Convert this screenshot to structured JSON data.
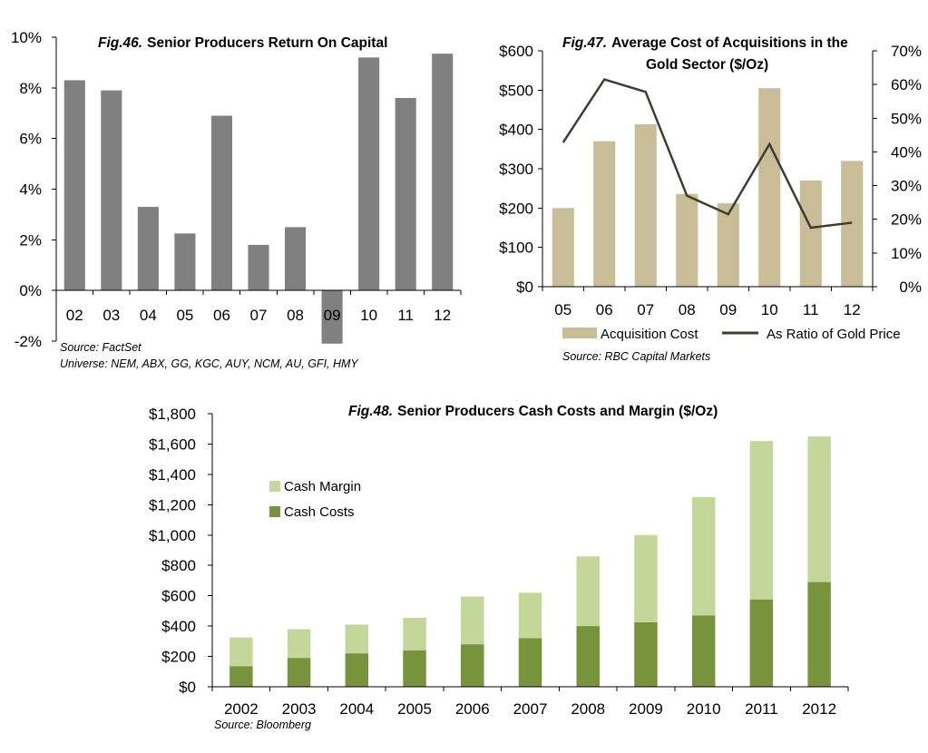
{
  "colors": {
    "bar_grey": "#808080",
    "bar_tan": "#c8bd97",
    "line_dark": "#3c3f30",
    "margin_light": "#c4d79b",
    "costs_green": "#77933c"
  },
  "chart_data": [
    {
      "id": "fig46",
      "type": "bar",
      "title_prefix": "Fig.46.",
      "title": "Senior Producers Return On Capital",
      "categories": [
        "02",
        "03",
        "04",
        "05",
        "06",
        "07",
        "08",
        "09",
        "10",
        "11",
        "12"
      ],
      "values": [
        8.3,
        7.9,
        3.3,
        2.25,
        6.9,
        1.8,
        2.5,
        -2.1,
        9.2,
        7.6,
        9.35
      ],
      "ylim": [
        -2,
        10
      ],
      "yticks": [
        -2,
        0,
        2,
        4,
        6,
        8,
        10
      ],
      "ytick_labels": [
        "-2%",
        "0%",
        "2%",
        "4%",
        "6%",
        "8%",
        "10%"
      ],
      "xlabel": "",
      "ylabel": "",
      "grid": false,
      "source": "Source: FactSet",
      "universe": "Universe: NEM, ABX, GG, KGC, AUY, NCM, AU, GFI, HMY"
    },
    {
      "id": "fig47",
      "type": "bar+line",
      "title_prefix": "Fig.47.",
      "title_line1": "Average Cost of Acquisitions in the",
      "title_line2": "Gold Sector ($/Oz)",
      "categories": [
        "05",
        "06",
        "07",
        "08",
        "09",
        "10",
        "11",
        "12"
      ],
      "series": [
        {
          "name": "Acquisition Cost",
          "kind": "bar",
          "axis": "left",
          "values": [
            200,
            370,
            413,
            236,
            212,
            505,
            270,
            320
          ]
        },
        {
          "name": "As Ratio of Gold Price",
          "kind": "line",
          "axis": "right",
          "values": [
            42.8,
            61.5,
            57.8,
            27.0,
            21.5,
            42.3,
            17.5,
            19.0
          ]
        }
      ],
      "ylim_left": [
        0,
        600
      ],
      "yticks_left": [
        0,
        100,
        200,
        300,
        400,
        500,
        600
      ],
      "ytick_labels_left": [
        "$0",
        "$100",
        "$200",
        "$300",
        "$400",
        "$500",
        "$600"
      ],
      "ylim_right": [
        0,
        70
      ],
      "yticks_right": [
        0,
        10,
        20,
        30,
        40,
        50,
        60,
        70
      ],
      "ytick_labels_right": [
        "0%",
        "10%",
        "20%",
        "30%",
        "40%",
        "50%",
        "60%",
        "70%"
      ],
      "legend_placement": "bottom",
      "grid": false,
      "source": "Source: RBC Capital Markets"
    },
    {
      "id": "fig48",
      "type": "stacked-bar",
      "title_prefix": "Fig.48.",
      "title": "Senior Producers Cash Costs and Margin ($/Oz)",
      "categories": [
        "2002",
        "2003",
        "2004",
        "2005",
        "2006",
        "2007",
        "2008",
        "2009",
        "2010",
        "2011",
        "2012"
      ],
      "series": [
        {
          "name": "Cash Costs",
          "values": [
            135,
            190,
            220,
            240,
            280,
            320,
            400,
            425,
            470,
            575,
            690
          ]
        },
        {
          "name": "Cash Margin",
          "values": [
            190,
            190,
            190,
            215,
            315,
            300,
            460,
            575,
            780,
            1045,
            960
          ]
        }
      ],
      "ylim": [
        0,
        1800
      ],
      "yticks": [
        0,
        200,
        400,
        600,
        800,
        1000,
        1200,
        1400,
        1600,
        1800
      ],
      "ytick_labels": [
        "$0",
        "$200",
        "$400",
        "$600",
        "$800",
        "$1,000",
        "$1,200",
        "$1,400",
        "$1,600",
        "$1,800"
      ],
      "legend_placement": "top-left",
      "grid": false,
      "source": "Source: Bloomberg"
    }
  ]
}
